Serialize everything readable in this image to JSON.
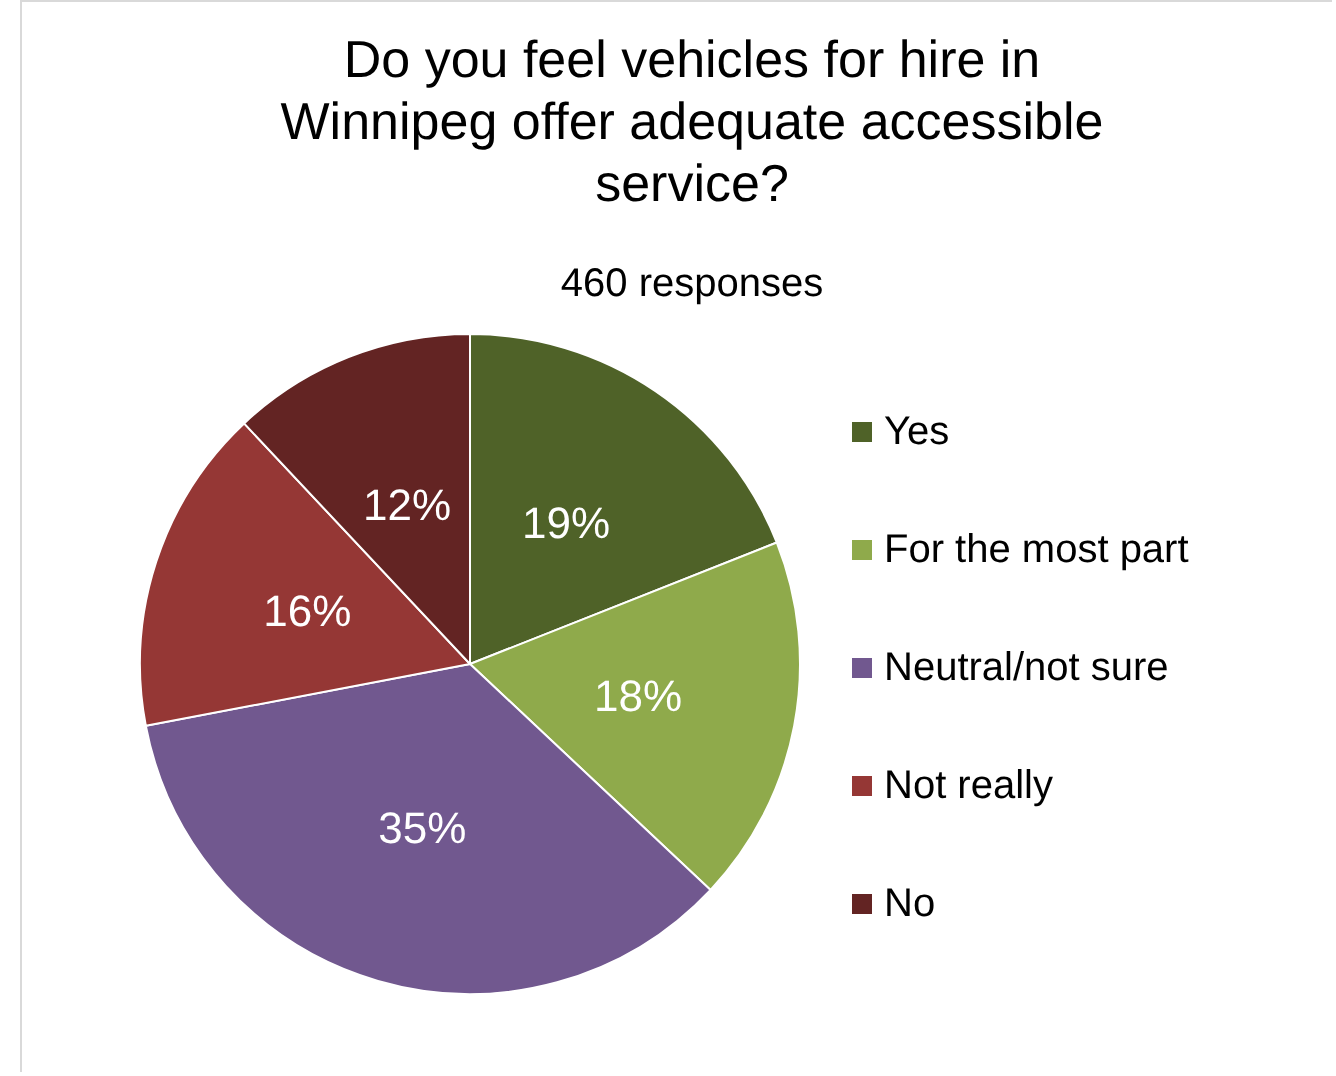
{
  "chart_data": {
    "type": "pie",
    "title": "Do you feel vehicles for hire in\nWinnipeg offer adequate accessible\nservice?",
    "subtitle": "460 responses",
    "categories": [
      "Yes",
      "For the most part",
      "Neutral/not sure",
      "Not really",
      "No"
    ],
    "values": [
      19,
      18,
      35,
      16,
      12
    ],
    "value_labels": [
      "19%",
      "18%",
      "35%",
      "16%",
      "12%"
    ],
    "colors": [
      "#4f6228",
      "#8faa4b",
      "#71588f",
      "#953735",
      "#632423"
    ],
    "legend": "right"
  }
}
